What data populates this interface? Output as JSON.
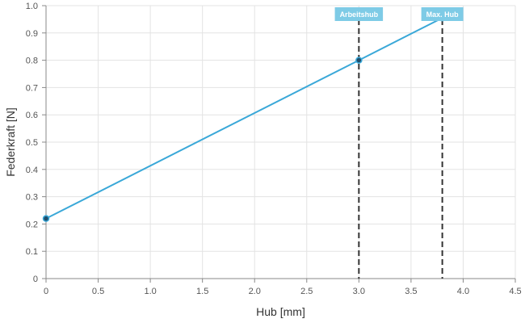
{
  "chart_data": {
    "type": "line",
    "xlabel": "Hub [mm]",
    "ylabel": "Federkraft [N]",
    "xlim": [
      0,
      4.5
    ],
    "ylim": [
      0,
      1.0
    ],
    "x_ticks": [
      "0",
      "0.5",
      "1.0",
      "1.5",
      "2.0",
      "2.5",
      "3.0",
      "3.5",
      "4.0",
      "4.5"
    ],
    "y_ticks": [
      "0",
      "0.1",
      "0.2",
      "0.3",
      "0.4",
      "0.5",
      "0.6",
      "0.7",
      "0.8",
      "0.9",
      "1.0"
    ],
    "grid": true,
    "series": [
      {
        "x": [
          0,
          3.0,
          3.8
        ],
        "y": [
          0.22,
          0.8,
          0.955
        ],
        "color": "#3aa8d8"
      }
    ],
    "markers": [
      {
        "label": "Arbeitshub",
        "x": 3.0
      },
      {
        "label": "Max. Hub",
        "x": 3.8
      }
    ],
    "colors": {
      "line": "#3aa8d8",
      "marker_label_bg": "#7ecbe6",
      "marker_line": "#333333",
      "grid": "#e3e3e3"
    }
  }
}
